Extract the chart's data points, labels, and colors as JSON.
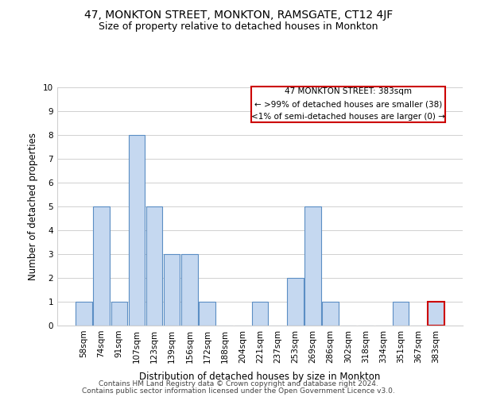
{
  "title1": "47, MONKTON STREET, MONKTON, RAMSGATE, CT12 4JF",
  "title2": "Size of property relative to detached houses in Monkton",
  "xlabel": "Distribution of detached houses by size in Monkton",
  "ylabel": "Number of detached properties",
  "categories": [
    "58sqm",
    "74sqm",
    "91sqm",
    "107sqm",
    "123sqm",
    "139sqm",
    "156sqm",
    "172sqm",
    "188sqm",
    "204sqm",
    "221sqm",
    "237sqm",
    "253sqm",
    "269sqm",
    "286sqm",
    "302sqm",
    "318sqm",
    "334sqm",
    "351sqm",
    "367sqm",
    "383sqm"
  ],
  "values": [
    1,
    5,
    1,
    8,
    5,
    3,
    3,
    1,
    0,
    0,
    1,
    0,
    2,
    5,
    1,
    0,
    0,
    0,
    1,
    0,
    1
  ],
  "bar_color": "#c5d8f0",
  "bar_edge_color": "#5b8ec4",
  "highlight_index": 20,
  "highlight_bar_edge_color": "#cc0000",
  "annotation_line1": "47 MONKTON STREET: 383sqm",
  "annotation_line2": "← >99% of detached houses are smaller (38)",
  "annotation_line3": "<1% of semi-detached houses are larger (0) →",
  "annotation_box_edge_color": "#cc0000",
  "ylim": [
    0,
    10
  ],
  "yticks": [
    0,
    1,
    2,
    3,
    4,
    5,
    6,
    7,
    8,
    9,
    10
  ],
  "grid_color": "#d0d0d0",
  "background_color": "#ffffff",
  "footer_line1": "Contains HM Land Registry data © Crown copyright and database right 2024.",
  "footer_line2": "Contains public sector information licensed under the Open Government Licence v3.0.",
  "title1_fontsize": 10,
  "title2_fontsize": 9,
  "xlabel_fontsize": 8.5,
  "ylabel_fontsize": 8.5,
  "tick_fontsize": 7.5,
  "annotation_fontsize": 7.5,
  "footer_fontsize": 6.5
}
